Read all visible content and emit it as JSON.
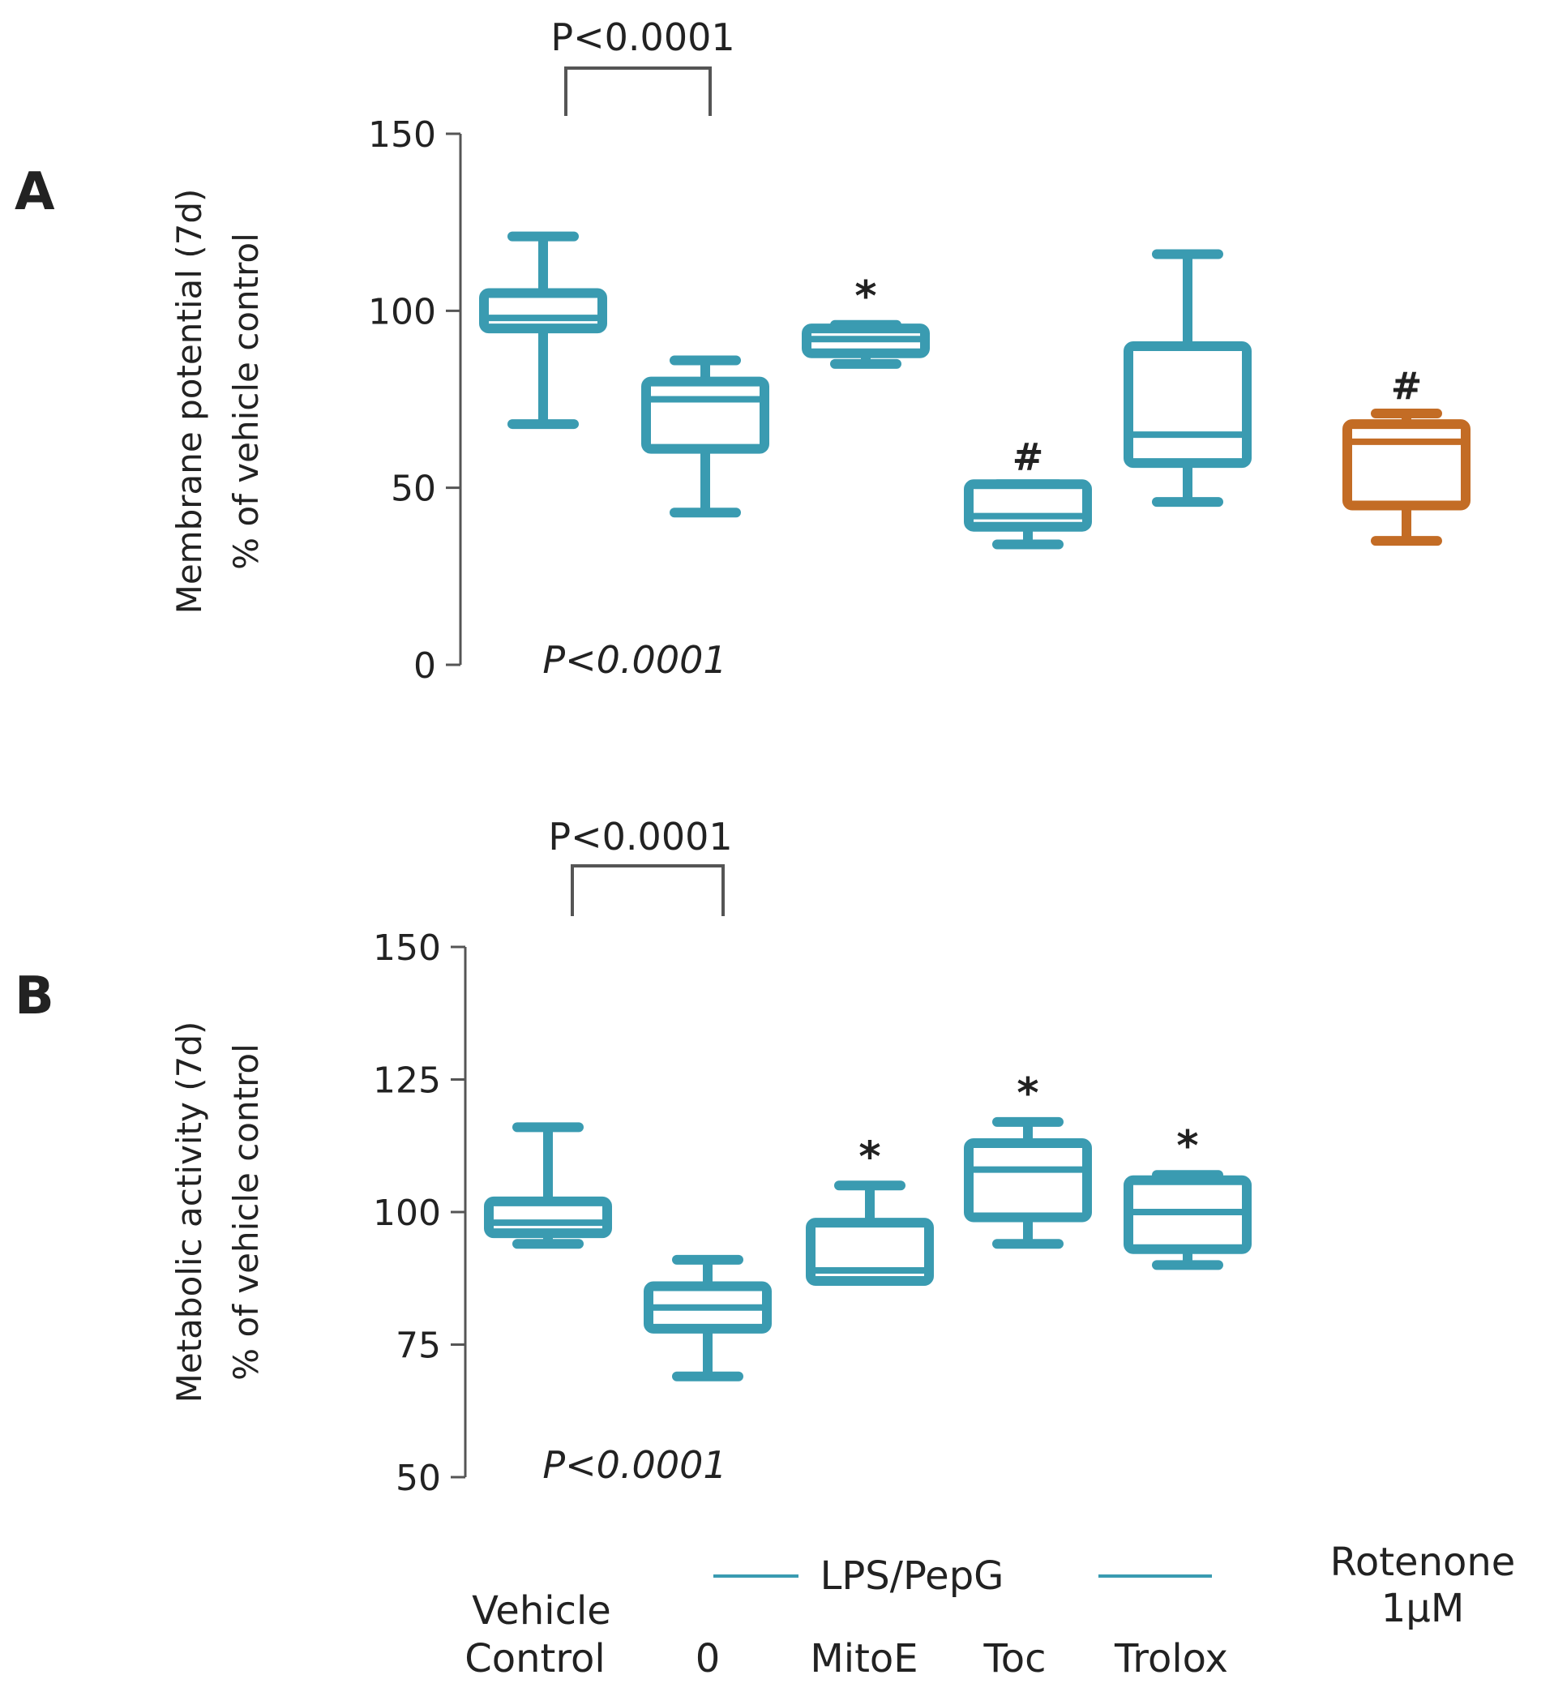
{
  "colors": {
    "teal": "#3a9bb1",
    "orange": "#c36c25",
    "axis": "#555555",
    "text": "#222222"
  },
  "group_labels": {
    "vehicle_line1": "Vehicle",
    "vehicle_line2": "Control",
    "lps_pepg": "LPS/PepG",
    "zero": "0",
    "mitoe": "MitoE",
    "toc": "Toc",
    "trolox": "Trolox",
    "rotenone_line1": "Rotenone",
    "rotenone_line2": "1µM"
  },
  "chart_data": [
    {
      "type": "boxplot",
      "panel": "A",
      "ylabel_line1": "Membrane potential (7d)",
      "ylabel_line2": "% of vehicle control",
      "ylim": [
        0,
        150
      ],
      "yticks": [
        0,
        50,
        100,
        150
      ],
      "ytick_labels": [
        "0",
        "50",
        "100",
        "150"
      ],
      "bracket_label": "P<0.0001",
      "bottom_label": "P<0.0001",
      "boxes": [
        {
          "group": "Vehicle Control",
          "color": "teal",
          "whisker_low": 68,
          "q1": 95,
          "median": 98,
          "q3": 105,
          "whisker_high": 121,
          "annotation": ""
        },
        {
          "group": "LPS/PepG 0",
          "color": "teal",
          "whisker_low": 43,
          "q1": 61,
          "median": 75,
          "q3": 80,
          "whisker_high": 86,
          "annotation": ""
        },
        {
          "group": "MitoE",
          "color": "teal",
          "whisker_low": 85,
          "q1": 88,
          "median": 92,
          "q3": 95,
          "whisker_high": 96,
          "annotation": "*"
        },
        {
          "group": "Toc",
          "color": "teal",
          "whisker_low": 34,
          "q1": 39,
          "median": 42,
          "q3": 51,
          "whisker_high": 51,
          "annotation": "#"
        },
        {
          "group": "Trolox",
          "color": "teal",
          "whisker_low": 46,
          "q1": 57,
          "median": 65,
          "q3": 90,
          "whisker_high": 116,
          "annotation": ""
        },
        {
          "group": "Rotenone 1µM",
          "color": "orange",
          "whisker_low": 35,
          "q1": 45,
          "median": 63,
          "q3": 68,
          "whisker_high": 71,
          "annotation": "#"
        }
      ]
    },
    {
      "type": "boxplot",
      "panel": "B",
      "ylabel_line1": "Metabolic activity (7d)",
      "ylabel_line2": "% of vehicle control",
      "ylim": [
        50,
        150
      ],
      "yticks": [
        50,
        75,
        100,
        125,
        150
      ],
      "ytick_labels": [
        "50",
        "75",
        "100",
        "125",
        "150"
      ],
      "bracket_label": "P<0.0001",
      "bottom_label": "P<0.0001",
      "boxes": [
        {
          "group": "Vehicle Control",
          "color": "teal",
          "whisker_low": 94,
          "q1": 96,
          "median": 98,
          "q3": 102,
          "whisker_high": 116,
          "annotation": ""
        },
        {
          "group": "LPS/PepG 0",
          "color": "teal",
          "whisker_low": 69,
          "q1": 78,
          "median": 82,
          "q3": 86,
          "whisker_high": 91,
          "annotation": ""
        },
        {
          "group": "MitoE",
          "color": "teal",
          "whisker_low": 87,
          "q1": 87,
          "median": 89,
          "q3": 98,
          "whisker_high": 105,
          "annotation": "*"
        },
        {
          "group": "Toc",
          "color": "teal",
          "whisker_low": 94,
          "q1": 99,
          "median": 108,
          "q3": 113,
          "whisker_high": 117,
          "annotation": "*"
        },
        {
          "group": "Trolox",
          "color": "teal",
          "whisker_low": 90,
          "q1": 93,
          "median": 100,
          "q3": 106,
          "whisker_high": 107,
          "annotation": "*"
        }
      ]
    }
  ]
}
